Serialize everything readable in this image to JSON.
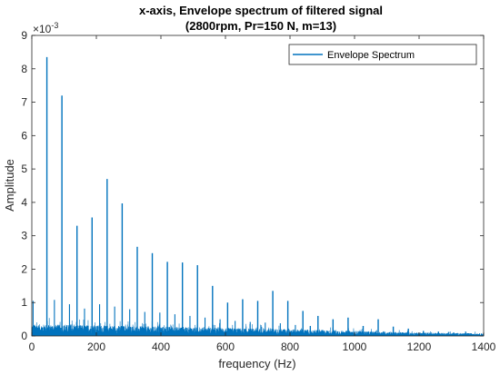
{
  "colors": {
    "series": "#0072bd",
    "axis": "#262626",
    "background": "#ffffff"
  },
  "chart_data": {
    "type": "line",
    "title": "x-axis, Envelope spectrum of filtered signal",
    "subtitle": "(2800rpm, Pr=150 N, m=13)",
    "xlabel": "frequency (Hz)",
    "ylabel": "Amplitude",
    "y_exponent_label": "×10",
    "y_exponent_value": "-3",
    "y_scale": 0.001,
    "xlim": [
      0,
      1400
    ],
    "ylim": [
      0,
      9
    ],
    "xticks": [
      0,
      200,
      400,
      600,
      800,
      1000,
      1200,
      1400
    ],
    "yticks": [
      0,
      1,
      2,
      3,
      4,
      5,
      6,
      7,
      8,
      9
    ],
    "grid": false,
    "legend": {
      "position": "top-right",
      "entries": [
        "Envelope Spectrum"
      ]
    },
    "series": [
      {
        "name": "Envelope Spectrum",
        "units": "x10^-3",
        "peaks": [
          {
            "x": 46.7,
            "y": 8.35
          },
          {
            "x": 93.3,
            "y": 7.2
          },
          {
            "x": 140,
            "y": 3.3
          },
          {
            "x": 186.7,
            "y": 3.55
          },
          {
            "x": 233.3,
            "y": 4.7
          },
          {
            "x": 280,
            "y": 3.97
          },
          {
            "x": 326.7,
            "y": 2.67
          },
          {
            "x": 373.3,
            "y": 2.48
          },
          {
            "x": 420,
            "y": 2.22
          },
          {
            "x": 466.7,
            "y": 2.2
          },
          {
            "x": 513.3,
            "y": 2.12
          },
          {
            "x": 560,
            "y": 1.5
          },
          {
            "x": 606.7,
            "y": 1.0
          },
          {
            "x": 653.3,
            "y": 1.1
          },
          {
            "x": 700,
            "y": 1.05
          },
          {
            "x": 746.7,
            "y": 1.35
          },
          {
            "x": 793.3,
            "y": 1.05
          },
          {
            "x": 840,
            "y": 0.75
          },
          {
            "x": 886.7,
            "y": 0.6
          },
          {
            "x": 933.3,
            "y": 0.5
          },
          {
            "x": 980,
            "y": 0.55
          },
          {
            "x": 1026.7,
            "y": 0.3
          },
          {
            "x": 1073.3,
            "y": 0.5
          },
          {
            "x": 1120,
            "y": 0.28
          },
          {
            "x": 1166.7,
            "y": 0.22
          },
          {
            "x": 1213.3,
            "y": 0.15
          },
          {
            "x": 1260,
            "y": 0.13
          },
          {
            "x": 1306.7,
            "y": 0.1
          },
          {
            "x": 1353.3,
            "y": 0.08
          }
        ],
        "secondary_peaks": [
          {
            "x": 4,
            "y": 1.05
          },
          {
            "x": 70,
            "y": 1.08
          },
          {
            "x": 116.7,
            "y": 0.95
          },
          {
            "x": 163.3,
            "y": 0.82
          },
          {
            "x": 210,
            "y": 0.95
          },
          {
            "x": 256.7,
            "y": 0.88
          },
          {
            "x": 303.3,
            "y": 0.8
          },
          {
            "x": 350,
            "y": 0.72
          },
          {
            "x": 396.7,
            "y": 0.7
          },
          {
            "x": 443.3,
            "y": 0.65
          },
          {
            "x": 490,
            "y": 0.6
          },
          {
            "x": 536.7,
            "y": 0.55
          },
          {
            "x": 583.3,
            "y": 0.5
          },
          {
            "x": 630,
            "y": 0.45
          },
          {
            "x": 676.7,
            "y": 0.42
          },
          {
            "x": 723.3,
            "y": 0.4
          },
          {
            "x": 770,
            "y": 0.38
          },
          {
            "x": 816.7,
            "y": 0.33
          },
          {
            "x": 863.3,
            "y": 0.3
          }
        ],
        "noise_floor": [
          {
            "x": 0,
            "y": 0.35
          },
          {
            "x": 200,
            "y": 0.32
          },
          {
            "x": 400,
            "y": 0.28
          },
          {
            "x": 600,
            "y": 0.24
          },
          {
            "x": 800,
            "y": 0.2
          },
          {
            "x": 1000,
            "y": 0.15
          },
          {
            "x": 1200,
            "y": 0.1
          },
          {
            "x": 1400,
            "y": 0.08
          }
        ]
      }
    ]
  }
}
